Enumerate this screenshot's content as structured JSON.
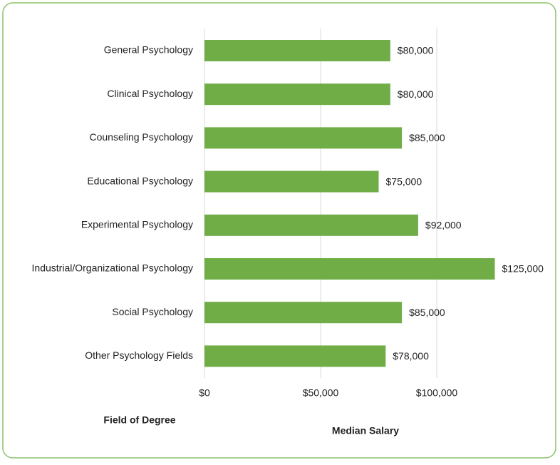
{
  "chart_data": {
    "type": "bar",
    "orientation": "horizontal",
    "categories": [
      "General Psychology",
      "Clinical Psychology",
      "Counseling Psychology",
      "Educational Psychology",
      "Experimental Psychology",
      "Industrial/Organizational Psychology",
      "Social Psychology",
      "Other Psychology Fields"
    ],
    "values": [
      80000,
      80000,
      85000,
      75000,
      92000,
      125000,
      85000,
      78000
    ],
    "value_labels": [
      "$80,000",
      "$80,000",
      "$85,000",
      "$75,000",
      "$92,000",
      "$125,000",
      "$85,000",
      "$78,000"
    ],
    "color": "#70ad47",
    "xlim": [
      0,
      125000
    ],
    "xticks": [
      {
        "value": 0,
        "label": "$0"
      },
      {
        "value": 50000,
        "label": "$50,000"
      },
      {
        "value": 100000,
        "label": "$100,000"
      }
    ],
    "grid": true,
    "y_axis_label": "Field of Degree",
    "x_axis_label": "Median Salary"
  }
}
